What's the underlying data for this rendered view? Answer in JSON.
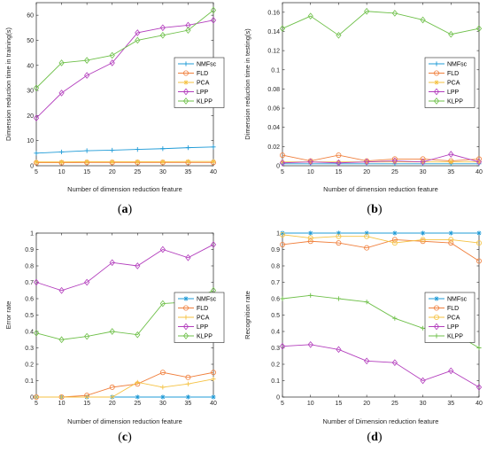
{
  "colors": {
    "NMFsc": "#1f9bd7",
    "FLD": "#f07f3c",
    "PCA": "#f5c242",
    "LPP": "#b33ebd",
    "KLPP": "#6fc04a"
  },
  "chart_data": [
    {
      "type": "line",
      "panel_label": "(a)",
      "xlabel": "Number of dimension reduction feature",
      "ylabel": "Dimension reduction time in training(s)",
      "x": [
        5,
        10,
        15,
        20,
        25,
        30,
        35,
        40
      ],
      "xlim": [
        5,
        40
      ],
      "ylim": [
        0,
        65
      ],
      "yticks": [
        0,
        10,
        20,
        30,
        40,
        50,
        60
      ],
      "ytick_labels": [
        "0",
        "10",
        "20",
        "30",
        "40",
        "50",
        "60"
      ],
      "legend_position": "center-right",
      "series": [
        {
          "name": "NMFsc",
          "marker": "plus",
          "values": [
            5,
            5.5,
            6,
            6.2,
            6.5,
            6.8,
            7.2,
            7.5
          ]
        },
        {
          "name": "FLD",
          "marker": "circle",
          "values": [
            1.2,
            1.2,
            1.3,
            1.3,
            1.3,
            1.3,
            1.3,
            1.3
          ]
        },
        {
          "name": "PCA",
          "marker": "star",
          "values": [
            1.5,
            1.5,
            1.6,
            1.6,
            1.6,
            1.6,
            1.7,
            1.7
          ]
        },
        {
          "name": "LPP",
          "marker": "diamond",
          "values": [
            19,
            29,
            36,
            41,
            53,
            55,
            56,
            58
          ]
        },
        {
          "name": "KLPP",
          "marker": "diamond",
          "values": [
            31,
            41,
            42,
            44,
            50,
            52,
            54,
            62
          ]
        }
      ]
    },
    {
      "type": "line",
      "panel_label": "(b)",
      "xlabel": "Number of dimension reduction feature",
      "ylabel": "Dimension reduction time in testing(s)",
      "x": [
        5,
        10,
        15,
        20,
        25,
        30,
        35,
        40
      ],
      "xlim": [
        5,
        40
      ],
      "ylim": [
        0,
        0.17
      ],
      "yticks": [
        0,
        0.02,
        0.04,
        0.06,
        0.08,
        0.1,
        0.12,
        0.14,
        0.16
      ],
      "ytick_labels": [
        "0",
        "0.02",
        "0.04",
        "0.06",
        "0.08",
        "0.1",
        "0.12",
        "0.14",
        "0.16"
      ],
      "legend_position": "center-right",
      "series": [
        {
          "name": "NMFsc",
          "marker": "plus",
          "values": [
            0.002,
            0.002,
            0.002,
            0.002,
            0.002,
            0.002,
            0.002,
            0.002
          ]
        },
        {
          "name": "FLD",
          "marker": "circle",
          "values": [
            0.011,
            0.005,
            0.011,
            0.005,
            0.007,
            0.007,
            0.005,
            0.007
          ]
        },
        {
          "name": "PCA",
          "marker": "star",
          "values": [
            0.004,
            0.004,
            0.004,
            0.004,
            0.004,
            0.004,
            0.004,
            0.004
          ]
        },
        {
          "name": "LPP",
          "marker": "diamond",
          "values": [
            0.003,
            0.004,
            0.003,
            0.004,
            0.005,
            0.004,
            0.012,
            0.004
          ]
        },
        {
          "name": "KLPP",
          "marker": "diamond",
          "values": [
            0.143,
            0.156,
            0.136,
            0.161,
            0.159,
            0.152,
            0.137,
            0.143
          ]
        }
      ]
    },
    {
      "type": "line",
      "panel_label": "(c)",
      "xlabel": "Number of dimension reduction feature",
      "ylabel": "Error rate",
      "x": [
        5,
        10,
        15,
        20,
        25,
        30,
        35,
        40
      ],
      "xlim": [
        5,
        40
      ],
      "ylim": [
        0,
        1
      ],
      "yticks": [
        0,
        0.1,
        0.2,
        0.3,
        0.4,
        0.5,
        0.6,
        0.7,
        0.8,
        0.9,
        1
      ],
      "ytick_labels": [
        "0",
        "0.1",
        "0.2",
        "0.3",
        "0.4",
        "0.5",
        "0.6",
        "0.7",
        "0.8",
        "0.9",
        "1"
      ],
      "legend_position": "center-right",
      "series": [
        {
          "name": "NMFsc",
          "marker": "star",
          "values": [
            0,
            0,
            0,
            0,
            0,
            0,
            0,
            0
          ]
        },
        {
          "name": "FLD",
          "marker": "circle",
          "values": [
            0,
            0,
            0.01,
            0.06,
            0.08,
            0.15,
            0.12,
            0.15
          ]
        },
        {
          "name": "PCA",
          "marker": "plus",
          "values": [
            0,
            0,
            0,
            0,
            0.09,
            0.06,
            0.08,
            0.11
          ]
        },
        {
          "name": "LPP",
          "marker": "diamond",
          "values": [
            0.7,
            0.65,
            0.7,
            0.82,
            0.8,
            0.9,
            0.85,
            0.93
          ]
        },
        {
          "name": "KLPP",
          "marker": "diamond",
          "values": [
            0.39,
            0.35,
            0.37,
            0.4,
            0.38,
            0.57,
            0.58,
            0.65
          ]
        }
      ]
    },
    {
      "type": "line",
      "panel_label": "(d)",
      "xlabel": "Number of Dimension reduction feature",
      "ylabel": "Recognition rate",
      "x": [
        5,
        10,
        15,
        20,
        25,
        30,
        35,
        40
      ],
      "xlim": [
        5,
        40
      ],
      "ylim": [
        0,
        1
      ],
      "yticks": [
        0,
        0.1,
        0.2,
        0.3,
        0.4,
        0.5,
        0.6,
        0.7,
        0.8,
        0.9,
        1
      ],
      "ytick_labels": [
        "0",
        "0.1",
        "0.2",
        "0.3",
        "0.4",
        "0.5",
        "0.6",
        "0.7",
        "0.8",
        "0.9",
        "1"
      ],
      "legend_position": "center-right",
      "series": [
        {
          "name": "NMFsc",
          "marker": "star",
          "values": [
            1,
            1,
            1,
            1,
            1,
            1,
            1,
            1
          ]
        },
        {
          "name": "FLD",
          "marker": "circle",
          "values": [
            0.93,
            0.95,
            0.94,
            0.91,
            0.96,
            0.95,
            0.94,
            0.83
          ]
        },
        {
          "name": "PCA",
          "marker": "circle",
          "values": [
            0.99,
            0.97,
            0.98,
            0.98,
            0.94,
            0.96,
            0.96,
            0.94
          ]
        },
        {
          "name": "LPP",
          "marker": "diamond",
          "values": [
            0.31,
            0.32,
            0.29,
            0.22,
            0.21,
            0.1,
            0.16,
            0.06
          ]
        },
        {
          "name": "KLPP",
          "marker": "plus",
          "values": [
            0.6,
            0.62,
            0.6,
            0.58,
            0.48,
            0.42,
            0.4,
            0.3
          ]
        }
      ]
    }
  ]
}
